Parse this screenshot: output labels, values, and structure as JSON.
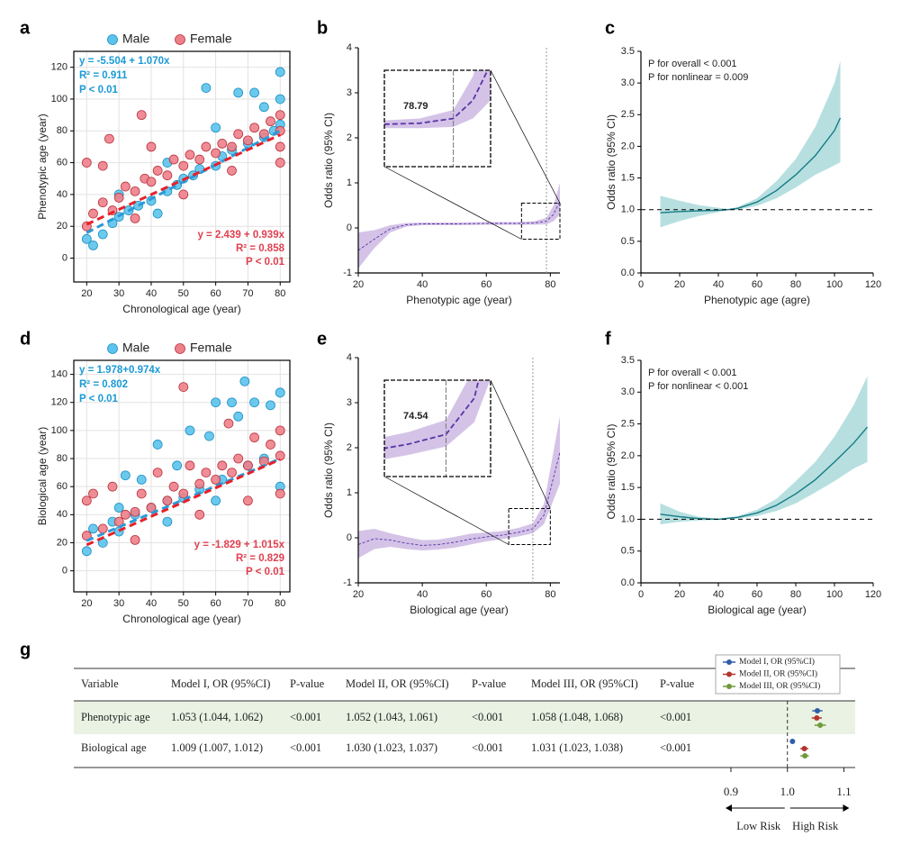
{
  "chart_data": [
    {
      "type": "scatter",
      "panel_label": "a",
      "xlabel": "Chronological age (year)",
      "ylabel": "Phenotypic age (year)",
      "xlim": [
        16,
        83
      ],
      "ylim": [
        -15,
        130
      ],
      "xticks": [
        20,
        30,
        40,
        50,
        60,
        70,
        80
      ],
      "yticks": [
        0,
        20,
        40,
        60,
        80,
        100,
        120
      ],
      "grid": true,
      "series": [
        {
          "name": "Male",
          "color": "#5bc3ec",
          "edge": "#1d8fc2",
          "text_color": "#1a9ad6",
          "x": [
            20,
            22,
            25,
            28,
            30,
            33,
            36,
            40,
            42,
            45,
            48,
            50,
            53,
            55,
            57,
            60,
            62,
            65,
            67,
            70,
            72,
            75,
            78,
            80,
            80,
            80,
            75,
            60,
            45,
            30
          ],
          "values": [
            12,
            8,
            15,
            22,
            26,
            30,
            33,
            36,
            28,
            42,
            46,
            50,
            52,
            56,
            107,
            58,
            64,
            68,
            104,
            72,
            104,
            76,
            80,
            84,
            117,
            100,
            95,
            82,
            60,
            40
          ],
          "fit": {
            "x": [
              20,
              80
            ],
            "values": [
              15.896,
              80.096
            ],
            "color": "#2a9ad8"
          },
          "annotation": [
            "y = -5.504 + 1.070x",
            "R² = 0.911",
            "P < 0.01"
          ]
        },
        {
          "name": "Female",
          "color": "#ee8089",
          "edge": "#b8333f",
          "text_color": "#e0404f",
          "x": [
            20,
            20,
            22,
            25,
            27,
            28,
            30,
            32,
            35,
            37,
            38,
            40,
            42,
            45,
            47,
            50,
            52,
            55,
            57,
            60,
            62,
            65,
            67,
            70,
            72,
            75,
            77,
            80,
            80,
            80,
            35,
            50,
            65,
            80,
            25,
            40
          ],
          "values": [
            60,
            20,
            28,
            35,
            75,
            30,
            38,
            45,
            42,
            90,
            50,
            48,
            55,
            52,
            62,
            58,
            65,
            62,
            70,
            66,
            72,
            70,
            78,
            74,
            82,
            78,
            86,
            80,
            90,
            70,
            25,
            40,
            55,
            60,
            58,
            70
          ],
          "fit": {
            "x": [
              20,
              80
            ],
            "values": [
              21.219,
              77.559
            ],
            "color": "#e8202a"
          },
          "annotation": [
            "y = 2.439 + 0.939x",
            "R² = 0.858",
            "P < 0.01"
          ]
        }
      ]
    },
    {
      "type": "rcs",
      "panel_label": "b",
      "xlabel": "Phenotypic age (year)",
      "ylabel": "Odds ratio (95% CI)",
      "xlim": [
        20,
        83
      ],
      "ylim": [
        -1,
        4
      ],
      "xticks": [
        20,
        40,
        60,
        80
      ],
      "yticks": [
        -1,
        0,
        1,
        2,
        3,
        4
      ],
      "color": "#5b34a8",
      "band_color": "#cdb8e3",
      "dashed": true,
      "x": [
        20,
        25,
        30,
        35,
        40,
        50,
        60,
        70,
        75,
        78.79,
        81,
        83
      ],
      "values": [
        -0.5,
        -0.25,
        -0.02,
        0.07,
        0.09,
        0.09,
        0.1,
        0.1,
        0.11,
        0.15,
        0.3,
        0.6
      ],
      "lower": [
        -0.9,
        -0.45,
        -0.1,
        0.03,
        0.06,
        0.06,
        0.07,
        0.07,
        0.07,
        0.08,
        0.15,
        0.3
      ],
      "upper": [
        -0.1,
        -0.05,
        0.06,
        0.11,
        0.12,
        0.12,
        0.13,
        0.13,
        0.15,
        0.22,
        0.5,
        1.0
      ],
      "cutoff": 78.79,
      "zoom": {
        "xlim": [
          71,
          83
        ],
        "ylim": [
          -0.25,
          0.55
        ]
      }
    },
    {
      "type": "rcs",
      "panel_label": "c",
      "xlabel": "Phenotypic age (agre)",
      "ylabel": "Odds ratio (95% CI)",
      "xlim": [
        0,
        120
      ],
      "ylim": [
        0,
        3.5
      ],
      "xticks": [
        0,
        20,
        40,
        60,
        80,
        100,
        120
      ],
      "yticks": [
        {
          "value": 0,
          "label": "0.0"
        },
        0.5,
        {
          "value": 1,
          "label": "1.0"
        },
        1.5,
        {
          "value": 2,
          "label": "2.0"
        },
        2.5,
        {
          "value": 3,
          "label": "3.0"
        },
        3.5
      ],
      "color": "#147c85",
      "band_color": "#aad9da",
      "dashed": false,
      "ref_line": 1,
      "x": [
        10,
        20,
        30,
        40,
        45,
        50,
        60,
        70,
        80,
        90,
        100,
        103
      ],
      "values": [
        0.95,
        0.97,
        0.98,
        0.99,
        1.0,
        1.02,
        1.12,
        1.3,
        1.55,
        1.85,
        2.25,
        2.45
      ],
      "lower": [
        0.72,
        0.82,
        0.9,
        0.96,
        0.99,
        1.0,
        1.06,
        1.18,
        1.35,
        1.55,
        1.7,
        1.75
      ],
      "upper": [
        1.22,
        1.14,
        1.07,
        1.03,
        1.01,
        1.04,
        1.18,
        1.45,
        1.8,
        2.3,
        3.0,
        3.35
      ],
      "annotations": [
        "P for overall < 0.001",
        "P for nonlinear = 0.009"
      ]
    },
    {
      "type": "scatter",
      "panel_label": "d",
      "xlabel": "Chronological age (year)",
      "ylabel": "Biological age (year)",
      "xlim": [
        16,
        83
      ],
      "ylim": [
        -15,
        150
      ],
      "xticks": [
        20,
        30,
        40,
        50,
        60,
        70,
        80
      ],
      "yticks": [
        0,
        20,
        40,
        60,
        80,
        100,
        120,
        140
      ],
      "grid": true,
      "series": [
        {
          "name": "Male",
          "color": "#5bc3ec",
          "edge": "#1d8fc2",
          "text_color": "#1a9ad6",
          "x": [
            20,
            22,
            25,
            28,
            30,
            32,
            35,
            37,
            40,
            42,
            45,
            48,
            50,
            52,
            55,
            58,
            60,
            62,
            65,
            67,
            69,
            70,
            72,
            75,
            77,
            80,
            80,
            60,
            45,
            30
          ],
          "values": [
            14,
            30,
            20,
            35,
            45,
            68,
            40,
            65,
            45,
            90,
            50,
            75,
            52,
            100,
            58,
            96,
            120,
            65,
            120,
            110,
            135,
            75,
            120,
            80,
            118,
            127,
            60,
            50,
            35,
            28
          ],
          "fit": {
            "x": [
              20,
              80
            ],
            "values": [
              21.458,
              79.898
            ],
            "color": "#2a9ad8"
          },
          "annotation": [
            "y = 1.978+0.974x",
            "R² = 0.802",
            "P < 0.01"
          ]
        },
        {
          "name": "Female",
          "color": "#ee8089",
          "edge": "#b8333f",
          "text_color": "#e0404f",
          "x": [
            20,
            20,
            22,
            25,
            28,
            30,
            32,
            35,
            37,
            40,
            42,
            45,
            47,
            50,
            50,
            52,
            55,
            57,
            60,
            62,
            64,
            65,
            67,
            70,
            72,
            75,
            77,
            80,
            80,
            80,
            35,
            55,
            70
          ],
          "values": [
            25,
            50,
            55,
            30,
            60,
            35,
            40,
            42,
            55,
            45,
            70,
            50,
            60,
            131,
            55,
            75,
            62,
            70,
            65,
            75,
            105,
            70,
            80,
            75,
            95,
            78,
            90,
            82,
            100,
            55,
            22,
            40,
            50
          ],
          "fit": {
            "x": [
              20,
              80
            ],
            "values": [
              18.471,
              79.371
            ],
            "color": "#e8202a"
          },
          "annotation": [
            "y = -1.829 + 1.015x",
            "R² = 0.829",
            "P < 0.01"
          ]
        }
      ]
    },
    {
      "type": "rcs",
      "panel_label": "e",
      "xlabel": "Biological age (year)",
      "ylabel": "Odds ratio (95% CI)",
      "xlim": [
        20,
        83
      ],
      "ylim": [
        -1,
        4
      ],
      "xticks": [
        20,
        40,
        60,
        80
      ],
      "yticks": [
        -1,
        0,
        1,
        2,
        3,
        4
      ],
      "color": "#5b34a8",
      "band_color": "#cdb8e3",
      "dashed": true,
      "x": [
        20,
        25,
        30,
        35,
        40,
        45,
        50,
        55,
        60,
        65,
        70,
        74.54,
        78,
        83
      ],
      "values": [
        -0.15,
        -0.02,
        -0.05,
        -0.12,
        -0.17,
        -0.15,
        -0.1,
        -0.03,
        0.02,
        0.06,
        0.12,
        0.2,
        0.5,
        1.9
      ],
      "lower": [
        -0.45,
        -0.25,
        -0.2,
        -0.25,
        -0.28,
        -0.26,
        -0.22,
        -0.15,
        -0.08,
        -0.03,
        0.03,
        0.1,
        0.3,
        1.2
      ],
      "upper": [
        0.15,
        0.2,
        0.1,
        0.02,
        -0.05,
        -0.04,
        0.02,
        0.09,
        0.12,
        0.15,
        0.22,
        0.32,
        0.75,
        2.7
      ],
      "cutoff": 74.54,
      "zoom": {
        "xlim": [
          67,
          80
        ],
        "ylim": [
          -0.15,
          0.65
        ]
      }
    },
    {
      "type": "rcs",
      "panel_label": "f",
      "xlabel": "Biological age (year)",
      "ylabel": "Odds ratio (95% CI)",
      "xlim": [
        0,
        120
      ],
      "ylim": [
        0,
        3.5
      ],
      "xticks": [
        0,
        20,
        40,
        60,
        80,
        100,
        120
      ],
      "yticks": [
        {
          "value": 0,
          "label": "0.0"
        },
        0.5,
        {
          "value": 1,
          "label": "1.0"
        },
        1.5,
        {
          "value": 2,
          "label": "2.0"
        },
        2.5,
        {
          "value": 3,
          "label": "3.0"
        },
        3.5
      ],
      "color": "#147c85",
      "band_color": "#aad9da",
      "dashed": false,
      "ref_line": 1,
      "x": [
        10,
        20,
        30,
        40,
        50,
        60,
        70,
        80,
        90,
        100,
        110,
        117
      ],
      "values": [
        1.08,
        1.04,
        1.01,
        1.0,
        1.03,
        1.1,
        1.22,
        1.4,
        1.62,
        1.9,
        2.2,
        2.45
      ],
      "lower": [
        0.92,
        0.96,
        0.98,
        0.99,
        1.01,
        1.05,
        1.13,
        1.25,
        1.42,
        1.6,
        1.8,
        1.9
      ],
      "upper": [
        1.25,
        1.12,
        1.04,
        1.01,
        1.05,
        1.15,
        1.32,
        1.6,
        1.9,
        2.3,
        2.8,
        3.25
      ],
      "annotations": [
        "P for overall < 0.001",
        "P for nonlinear < 0.001"
      ]
    },
    {
      "type": "forest",
      "xlim": [
        0.865,
        1.12
      ],
      "xticks": [
        0.9,
        {
          "value": 1,
          "label": "1.0"
        },
        1.1
      ],
      "ref_line": 1,
      "arrows": [
        "Low Risk",
        "High Risk"
      ],
      "series": [
        {
          "name": "Model I, OR (95%CI)",
          "color": "#2f5ea8",
          "values": [
            1.053,
            1.009
          ],
          "lower": [
            1.044,
            1.007
          ],
          "upper": [
            1.062,
            1.012
          ]
        },
        {
          "name": "Model II, OR (95%CI)",
          "color": "#b2352f",
          "values": [
            1.052,
            1.03
          ],
          "lower": [
            1.043,
            1.023
          ],
          "upper": [
            1.061,
            1.037
          ]
        },
        {
          "name": "Model III, OR (95%CI)",
          "color": "#6f9a3a",
          "values": [
            1.058,
            1.031
          ],
          "lower": [
            1.048,
            1.023
          ],
          "upper": [
            1.068,
            1.038
          ]
        }
      ]
    }
  ],
  "table": {
    "panel_label": "g",
    "header": [
      "Variable",
      "Model I, OR (95%CI)",
      "P-value",
      "Model II, OR (95%CI)",
      "P-value",
      "Model III, OR (95%CI)",
      "P-value"
    ],
    "rows": [
      [
        "Phenotypic age",
        "1.053 (1.044, 1.062)",
        "<0.001",
        "1.052 (1.043, 1.061)",
        "<0.001",
        "1.058 (1.048, 1.068)",
        "<0.001"
      ],
      [
        "Biological age",
        "1.009 (1.007, 1.012)",
        "<0.001",
        "1.030 (1.023, 1.037)",
        "<0.001",
        "1.031 (1.023, 1.038)",
        "<0.001"
      ]
    ]
  }
}
